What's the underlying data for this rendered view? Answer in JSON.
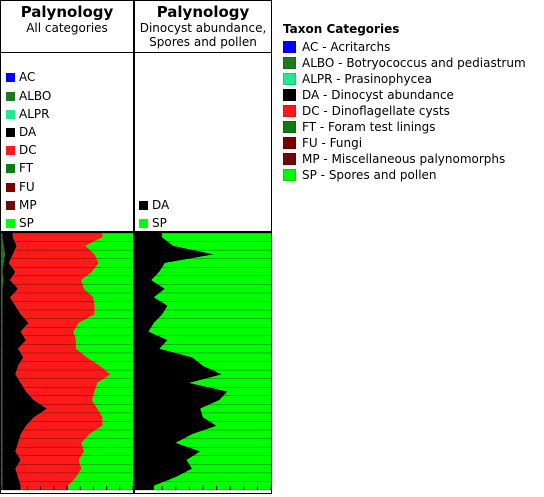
{
  "panels": [
    {
      "title": "Palynology",
      "subtitle_lines": [
        "All categories"
      ]
    },
    {
      "title": "Palynology",
      "subtitle_lines": [
        "Dinocyst abundance,",
        "Spores and pollen"
      ]
    }
  ],
  "legend": {
    "title": "Taxon Categories",
    "items": [
      {
        "code": "AC",
        "label": "AC - Acritarchs",
        "color": "#0000ff"
      },
      {
        "code": "ALBO",
        "label": "ALBO - Botryococcus and pediastrum",
        "color": "#1e7a1e"
      },
      {
        "code": "ALPR",
        "label": "ALPR - Prasinophycea",
        "color": "#22e890"
      },
      {
        "code": "DA",
        "label": "DA - Dinocyst abundance",
        "color": "#000000"
      },
      {
        "code": "DC",
        "label": "DC - Dinoflagellate cysts",
        "color": "#ff1a1a"
      },
      {
        "code": "FT",
        "label": "FT - Foram test linings",
        "color": "#127a12"
      },
      {
        "code": "FU",
        "label": "FU - Fungi",
        "color": "#7a0000"
      },
      {
        "code": "MP",
        "label": "MP - Miscellaneous palynomorphs",
        "color": "#6e0a0a"
      },
      {
        "code": "SP",
        "label": "SP - Spores and pollen",
        "color": "#00ff00"
      }
    ]
  },
  "chart_data": [
    {
      "type": "area",
      "stacked": "percent",
      "legend_codes": [
        "AC",
        "ALBO",
        "ALPR",
        "DA",
        "DC",
        "FT",
        "FU",
        "MP",
        "SP"
      ],
      "n_samples": 30,
      "series": [
        {
          "name": "ALBO",
          "values": [
            0.01,
            0.02,
            0.03,
            0.02,
            0.01,
            0.02,
            0.01,
            0.01,
            0.01,
            0.01,
            0.01,
            0.01,
            0.01,
            0.01,
            0.01,
            0.01,
            0.01,
            0.01,
            0.01,
            0.01,
            0.01,
            0.01,
            0.01,
            0.01,
            0.01,
            0.01,
            0.01,
            0.01,
            0.01,
            0.01
          ]
        },
        {
          "name": "DA",
          "values": [
            0.08,
            0.1,
            0.06,
            0.04,
            0.1,
            0.05,
            0.12,
            0.06,
            0.1,
            0.14,
            0.2,
            0.14,
            0.18,
            0.12,
            0.16,
            0.12,
            0.1,
            0.14,
            0.18,
            0.24,
            0.34,
            0.24,
            0.18,
            0.14,
            0.12,
            0.1,
            0.14,
            0.1,
            0.12,
            0.14
          ]
        },
        {
          "name": "DC",
          "values": [
            0.68,
            0.52,
            0.62,
            0.68,
            0.58,
            0.54,
            0.5,
            0.63,
            0.6,
            0.56,
            0.38,
            0.4,
            0.38,
            0.44,
            0.48,
            0.62,
            0.72,
            0.58,
            0.52,
            0.44,
            0.38,
            0.52,
            0.58,
            0.52,
            0.48,
            0.52,
            0.44,
            0.5,
            0.44,
            0.36
          ]
        },
        {
          "name": "SP",
          "values": [
            0.23,
            0.36,
            0.29,
            0.26,
            0.31,
            0.39,
            0.37,
            0.3,
            0.29,
            0.29,
            0.41,
            0.45,
            0.43,
            0.43,
            0.35,
            0.25,
            0.17,
            0.27,
            0.29,
            0.31,
            0.27,
            0.23,
            0.23,
            0.33,
            0.39,
            0.37,
            0.41,
            0.39,
            0.43,
            0.49
          ]
        }
      ]
    },
    {
      "type": "area",
      "stacked": "percent",
      "legend_codes": [
        "DA",
        "SP"
      ],
      "n_samples": 30,
      "series": [
        {
          "name": "DA",
          "values": [
            0.2,
            0.28,
            0.58,
            0.22,
            0.18,
            0.12,
            0.22,
            0.14,
            0.24,
            0.2,
            0.14,
            0.1,
            0.24,
            0.18,
            0.42,
            0.5,
            0.64,
            0.4,
            0.68,
            0.62,
            0.48,
            0.5,
            0.6,
            0.42,
            0.3,
            0.48,
            0.38,
            0.42,
            0.3,
            0.14
          ]
        },
        {
          "name": "SP",
          "values": [
            0.8,
            0.72,
            0.42,
            0.78,
            0.82,
            0.88,
            0.78,
            0.86,
            0.76,
            0.8,
            0.86,
            0.9,
            0.76,
            0.82,
            0.58,
            0.5,
            0.36,
            0.6,
            0.32,
            0.38,
            0.52,
            0.5,
            0.4,
            0.58,
            0.7,
            0.52,
            0.62,
            0.58,
            0.7,
            0.86
          ]
        }
      ]
    }
  ]
}
